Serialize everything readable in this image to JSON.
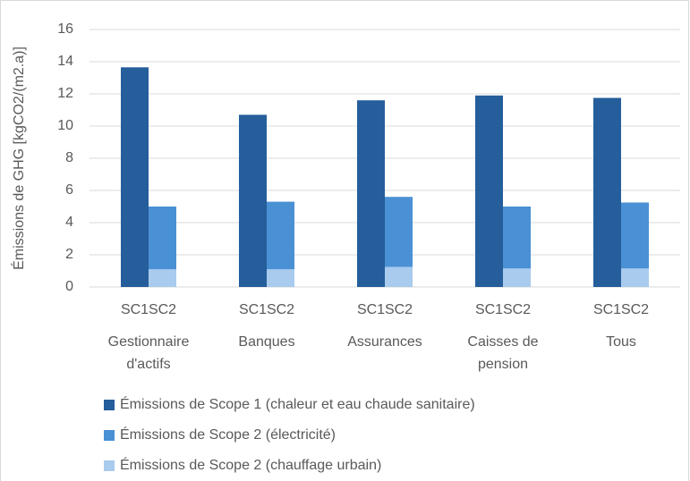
{
  "chart_data": {
    "type": "bar",
    "stacked": true,
    "y_label": "Émissions de GHG [kgCO2/(m2.a)]",
    "groups": [
      "Gestionnaire d'actifs",
      "Banques",
      "Assurances",
      "Caisses de pension",
      "Tous"
    ],
    "categories": [
      "SC1",
      "SC2",
      "SC1",
      "SC2",
      "SC1",
      "SC2",
      "SC1",
      "SC2",
      "SC1",
      "SC2"
    ],
    "series": [
      {
        "name": "Émissions de Scope 1 (chaleur et eau chaude sanitaire)",
        "color": "#255e9b",
        "values": [
          13.65,
          null,
          10.7,
          null,
          11.6,
          null,
          11.9,
          null,
          11.75,
          null
        ]
      },
      {
        "name": "Émissions de Scope 2 (électricité)",
        "color": "#4a90d4",
        "values": [
          null,
          3.9,
          null,
          4.2,
          null,
          4.35,
          null,
          3.85,
          null,
          4.1
        ]
      },
      {
        "name": "Émissions de Scope 2 (chauffage urbain)",
        "color": "#a9cbee",
        "values": [
          null,
          1.1,
          null,
          1.1,
          null,
          1.25,
          null,
          1.15,
          null,
          1.15
        ]
      }
    ],
    "ylim": [
      0,
      16
    ],
    "yticks": [
      0,
      2,
      4,
      6,
      8,
      10,
      12,
      14,
      16
    ],
    "grid": true
  }
}
